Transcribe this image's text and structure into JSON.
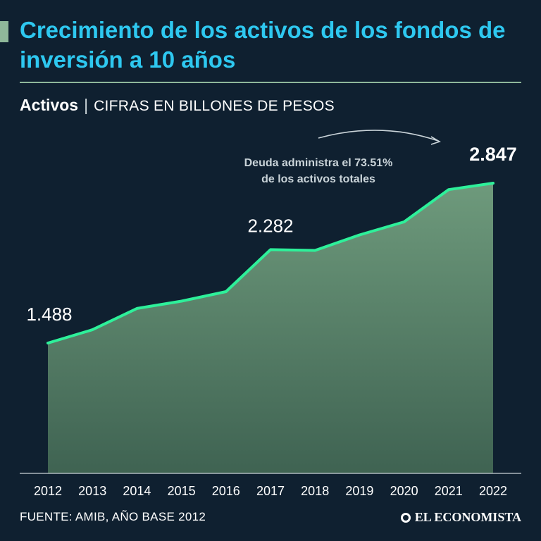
{
  "header": {
    "title": "Crecimiento de los activos de los fondos de inversión a 10 años",
    "subtitle_bold": "Activos",
    "subtitle_sep": "|",
    "subtitle_units": "CIFRAS EN BILLONES DE PESOS"
  },
  "annotation": {
    "line1": "Deuda administra el 73.51%",
    "line2": "de los activos totales"
  },
  "footer": {
    "source": "FUENTE: AMIB, AÑO BASE 2012",
    "logo": "EL ECONOMISTA"
  },
  "colors": {
    "background": "#0f2030",
    "title": "#2ec8f0",
    "line": "#2ef09a",
    "area_top": "#6e9a7c",
    "area_bottom": "#3f6352",
    "rule": "#8fb89a"
  },
  "chart_data": {
    "type": "area",
    "title": "Activos",
    "ylabel": "Cifras en billones de pesos",
    "xlabel": "",
    "categories": [
      "2012",
      "2013",
      "2014",
      "2015",
      "2016",
      "2017",
      "2018",
      "2019",
      "2020",
      "2021",
      "2022"
    ],
    "values": [
      1.488,
      1.601,
      1.782,
      1.844,
      1.925,
      2.282,
      2.275,
      2.407,
      2.518,
      2.792,
      2.847
    ],
    "ylim": [
      0,
      3.0
    ],
    "data_labels": [
      {
        "index": 0,
        "text": "1.488",
        "bold": false
      },
      {
        "index": 5,
        "text": "2.282",
        "bold": false
      },
      {
        "index": 10,
        "text": "2.847",
        "bold": true
      }
    ],
    "grid": false
  }
}
